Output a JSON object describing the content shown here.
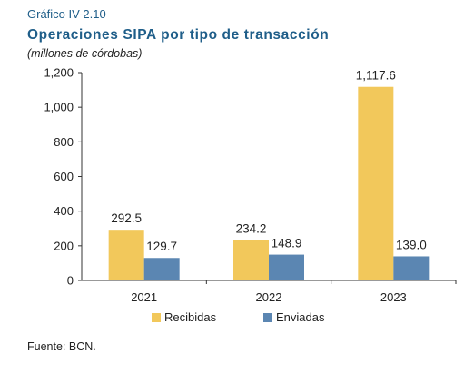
{
  "header": {
    "label": "Gráfico IV-2.10",
    "title": "Operaciones SIPA por tipo de transacción",
    "subtitle": "(millones de córdobas)"
  },
  "footer": {
    "source": "Fuente: BCN."
  },
  "colors": {
    "recibidas": "#f2c85b",
    "enviadas": "#5b86b2",
    "axis": "#333333"
  },
  "chart_data": {
    "type": "bar",
    "categories": [
      "2021",
      "2022",
      "2023"
    ],
    "series": [
      {
        "name": "Recibidas",
        "values": [
          292.5,
          234.2,
          1117.6
        ],
        "labels": [
          "292.5",
          "234.2",
          "1,117.6"
        ]
      },
      {
        "name": "Enviadas",
        "values": [
          129.7,
          148.9,
          139.0
        ],
        "labels": [
          "129.7",
          "148.9",
          "139.0"
        ]
      }
    ],
    "ylim": [
      0,
      1200
    ],
    "yticks": [
      0,
      200,
      400,
      600,
      800,
      1000,
      1200
    ],
    "ytick_labels": [
      "0",
      "200",
      "400",
      "600",
      "800",
      "1,000",
      "1,200"
    ],
    "grid": false,
    "legend_position": "bottom",
    "data_labels": true
  }
}
